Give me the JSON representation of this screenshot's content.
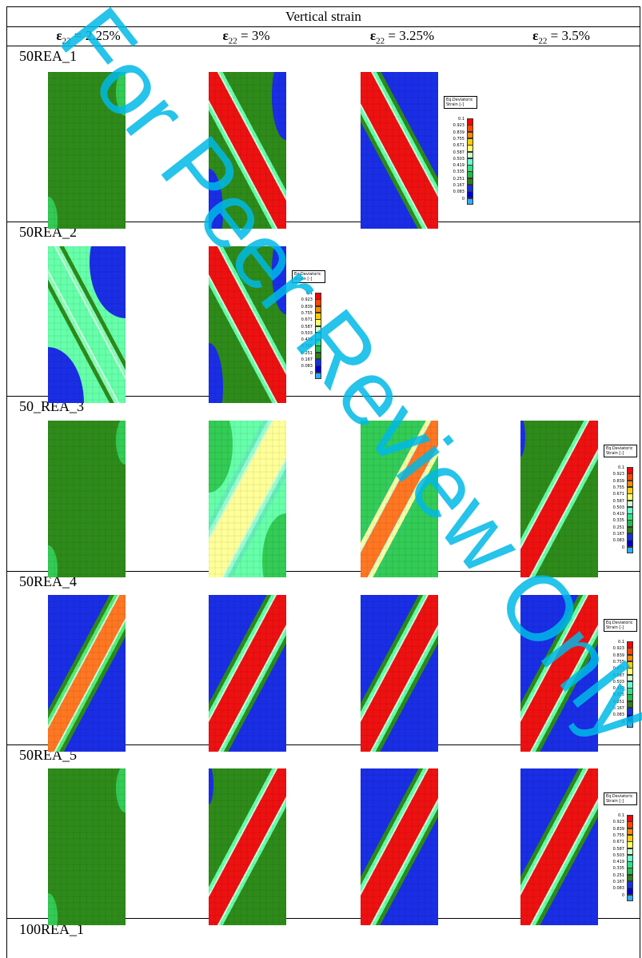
{
  "header": {
    "title": "Vertical strain",
    "symbol": "ε",
    "subscript": "22",
    "columns": [
      "= 2.25%",
      "= 3%",
      "= 3.25%",
      "= 3.5%"
    ]
  },
  "legend": {
    "title": "Eq.Deviatoric Strain [-]",
    "values": [
      "0.1",
      "0.923",
      "0.839",
      "0.755",
      "0.671",
      "0.587",
      "0.503",
      "0.419",
      "0.335",
      "0.251",
      "0.167",
      "0.083",
      "0"
    ],
    "colors": [
      "#ff0000",
      "#ff4400",
      "#ff8800",
      "#ffcc00",
      "#ffff66",
      "#ccffcc",
      "#66ffcc",
      "#33dd88",
      "#22bb44",
      "#2e7d1a",
      "#1133dd",
      "#0000cc",
      "#33aaff"
    ]
  },
  "watermark": {
    "text": "For Peer Review Only",
    "color": "#00b8e6"
  },
  "rows": [
    {
      "label": "50REA_1",
      "panels": [
        "green",
        "band-red-nw",
        "band-red-nw-blue",
        ""
      ],
      "legend_col": 2
    },
    {
      "label": "50REA_2",
      "panels": [
        "band-light-nw",
        "band-red-nw",
        "",
        ""
      ],
      "legend_col": 1
    },
    {
      "label": "50_REA_3",
      "panels": [
        "green",
        "band-yellow-ne",
        "band-orange-ne",
        "band-red-ne"
      ],
      "legend_col": 3
    },
    {
      "label": "50REA_4",
      "panels": [
        "band-orange-ne-blue",
        "band-red-ne-blue",
        "band-red-ne-blue",
        "band-red-ne-blue"
      ],
      "legend_col": 3
    },
    {
      "label": "50REA_5",
      "panels": [
        "green",
        "band-red-ne",
        "band-red-ne-blue",
        "band-red-ne-blue"
      ],
      "legend_col": 3
    },
    {
      "label": "100REA_1",
      "panels": [],
      "legend_col": -1
    }
  ]
}
